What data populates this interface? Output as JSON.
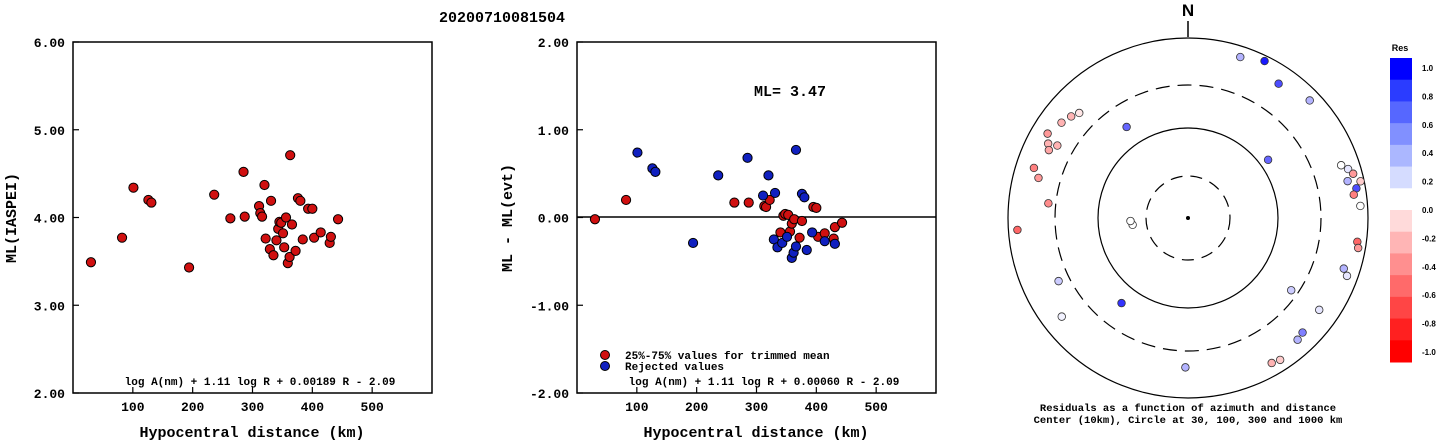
{
  "header": {
    "title": "20200710081504"
  },
  "colors": {
    "red_marker": "#d01010",
    "blue_marker": "#1020c0"
  },
  "chart_data": [
    {
      "type": "scatter",
      "id": "left",
      "xlabel": "Hypocentral distance (km)",
      "ylabel": "ML(IASPEI)",
      "xlim": [
        0,
        600
      ],
      "ylim": [
        2.0,
        6.0
      ],
      "xticks": [
        100,
        200,
        300,
        400,
        500
      ],
      "yticks": [
        2.0,
        3.0,
        4.0,
        5.0,
        6.0
      ],
      "ytick_labels": [
        "2.00",
        "3.00",
        "4.00",
        "5.00",
        "6.00"
      ],
      "formula": "log A(nm) + 1.11 log R + 0.00189 R - 2.09",
      "points": [
        [
          30,
          3.49
        ],
        [
          82,
          3.77
        ],
        [
          101,
          4.34
        ],
        [
          126,
          4.2
        ],
        [
          131,
          4.17
        ],
        [
          194,
          3.43
        ],
        [
          236,
          4.26
        ],
        [
          263,
          3.99
        ],
        [
          285,
          4.52
        ],
        [
          287,
          4.01
        ],
        [
          311,
          4.13
        ],
        [
          313,
          4.05
        ],
        [
          316,
          4.01
        ],
        [
          320,
          4.37
        ],
        [
          322,
          3.76
        ],
        [
          329,
          3.64
        ],
        [
          331,
          4.19
        ],
        [
          335,
          3.57
        ],
        [
          340,
          3.74
        ],
        [
          343,
          3.87
        ],
        [
          345,
          3.95
        ],
        [
          348,
          3.94
        ],
        [
          351,
          3.82
        ],
        [
          353,
          3.66
        ],
        [
          356,
          4.0
        ],
        [
          359,
          3.48
        ],
        [
          362,
          3.55
        ],
        [
          363,
          4.71
        ],
        [
          366,
          3.92
        ],
        [
          372,
          3.62
        ],
        [
          376,
          4.22
        ],
        [
          380,
          4.19
        ],
        [
          384,
          3.75
        ],
        [
          393,
          4.1
        ],
        [
          400,
          4.1
        ],
        [
          403,
          3.77
        ],
        [
          414,
          3.83
        ],
        [
          429,
          3.71
        ],
        [
          431,
          3.78
        ],
        [
          443,
          3.98
        ]
      ]
    },
    {
      "type": "scatter",
      "id": "mid",
      "xlabel": "Hypocentral distance (km)",
      "ylabel": "ML - ML(evt)",
      "xlim": [
        0,
        600
      ],
      "ylim": [
        -2.0,
        2.0
      ],
      "xticks": [
        100,
        200,
        300,
        400,
        500
      ],
      "yticks": [
        -2.0,
        -1.0,
        0.0,
        1.0,
        2.0
      ],
      "ytick_labels": [
        "-2.00",
        "-1.00",
        "0.00",
        "1.00",
        "2.00"
      ],
      "annotation": "ML= 3.47",
      "legend": [
        {
          "label": "25%-75% values for trimmed mean",
          "color": "#d01010"
        },
        {
          "label": "Rejected values",
          "color": "#1020c0"
        }
      ],
      "formula": "log A(nm) + 1.11 log R + 0.00060 R - 2.09",
      "trimmed_points": [
        [
          30,
          -0.02
        ],
        [
          82,
          0.2
        ],
        [
          263,
          0.17
        ],
        [
          287,
          0.17
        ],
        [
          313,
          0.13
        ],
        [
          316,
          0.12
        ],
        [
          322,
          0.2
        ],
        [
          340,
          -0.17
        ],
        [
          345,
          0.02
        ],
        [
          348,
          0.04
        ],
        [
          353,
          0.03
        ],
        [
          356,
          -0.16
        ],
        [
          359,
          -0.07
        ],
        [
          363,
          -0.02
        ],
        [
          372,
          -0.23
        ],
        [
          376,
          -0.04
        ],
        [
          395,
          0.12
        ],
        [
          400,
          0.11
        ],
        [
          403,
          -0.22
        ],
        [
          414,
          -0.18
        ],
        [
          429,
          -0.24
        ],
        [
          431,
          -0.11
        ],
        [
          443,
          -0.06
        ]
      ],
      "rejected_points": [
        [
          101,
          0.74
        ],
        [
          126,
          0.56
        ],
        [
          131,
          0.52
        ],
        [
          194,
          -0.29
        ],
        [
          236,
          0.48
        ],
        [
          285,
          0.68
        ],
        [
          311,
          0.25
        ],
        [
          320,
          0.48
        ],
        [
          329,
          -0.25
        ],
        [
          331,
          0.28
        ],
        [
          335,
          -0.34
        ],
        [
          343,
          -0.29
        ],
        [
          351,
          -0.22
        ],
        [
          359,
          -0.46
        ],
        [
          362,
          -0.4
        ],
        [
          366,
          0.77
        ],
        [
          366,
          -0.33
        ],
        [
          376,
          0.27
        ],
        [
          380,
          0.23
        ],
        [
          384,
          -0.37
        ],
        [
          393,
          -0.17
        ],
        [
          414,
          -0.27
        ],
        [
          431,
          -0.3
        ]
      ]
    },
    {
      "type": "polar",
      "id": "azimuth",
      "north_label": "N",
      "caption_line1": "Residuals as a function of azimuth and distance",
      "caption_line2": "Center (10km), Circle at 30, 100, 300 and 1000 km",
      "colorbar": {
        "title": "Res",
        "ticks": [
          "1.0",
          "0.8",
          "0.6",
          "0.4",
          "0.2",
          "0.0",
          "-0.2",
          "-0.4",
          "-0.6",
          "-0.8",
          "-1.0"
        ],
        "colors": [
          "#0000ff",
          "#2b3cff",
          "#5667ff",
          "#8190ff",
          "#abb7ff",
          "#d5dcff",
          "#ffffff",
          "#ffdada",
          "#ffb5b5",
          "#ff8f8f",
          "#ff6a6a",
          "#ff4545",
          "#ff2020",
          "#ff0000"
        ]
      },
      "points": [
        {
          "az": 307,
          "r": 0.88,
          "res": -0.3
        },
        {
          "az": 311,
          "r": 0.86,
          "res": -0.3
        },
        {
          "az": 314,
          "r": 0.84,
          "res": -0.1
        },
        {
          "az": 301,
          "r": 0.91,
          "res": -0.4
        },
        {
          "az": 298,
          "r": 0.88,
          "res": -0.3
        },
        {
          "az": 296,
          "r": 0.86,
          "res": -0.35
        },
        {
          "az": 299,
          "r": 0.83,
          "res": -0.3
        },
        {
          "az": 288,
          "r": 0.9,
          "res": -0.5
        },
        {
          "az": 285,
          "r": 0.86,
          "res": -0.4
        },
        {
          "az": 276,
          "r": 0.78,
          "res": -0.45
        },
        {
          "az": 266,
          "r": 0.95,
          "res": -0.6
        },
        {
          "az": 244,
          "r": 0.8,
          "res": 0.2
        },
        {
          "az": 232,
          "r": 0.89,
          "res": 0.05
        },
        {
          "az": 263,
          "r": 0.31,
          "res": 0.0
        },
        {
          "az": 267,
          "r": 0.32,
          "res": 0.0
        },
        {
          "az": 218,
          "r": 0.6,
          "res": 0.8
        },
        {
          "az": 18,
          "r": 0.94,
          "res": 0.3
        },
        {
          "az": 26,
          "r": 0.97,
          "res": 0.9
        },
        {
          "az": 34,
          "r": 0.9,
          "res": 0.7
        },
        {
          "az": 46,
          "r": 0.94,
          "res": 0.3
        },
        {
          "az": 54,
          "r": 0.55,
          "res": 0.6
        },
        {
          "az": 326,
          "r": 0.61,
          "res": 0.6
        },
        {
          "az": 71,
          "r": 0.9,
          "res": 0.0
        },
        {
          "az": 73,
          "r": 0.93,
          "res": 0.1
        },
        {
          "az": 75,
          "r": 0.95,
          "res": -0.4
        },
        {
          "az": 77,
          "r": 0.91,
          "res": 0.3
        },
        {
          "az": 78,
          "r": 0.98,
          "res": -0.2
        },
        {
          "az": 80,
          "r": 0.95,
          "res": 0.7
        },
        {
          "az": 82,
          "r": 0.93,
          "res": -0.5
        },
        {
          "az": 86,
          "r": 0.96,
          "res": 0.0
        },
        {
          "az": 98,
          "r": 0.95,
          "res": -0.6
        },
        {
          "az": 100,
          "r": 0.96,
          "res": -0.4
        },
        {
          "az": 108,
          "r": 0.91,
          "res": 0.3
        },
        {
          "az": 110,
          "r": 0.94,
          "res": 0.1
        },
        {
          "az": 125,
          "r": 0.89,
          "res": 0.1
        },
        {
          "az": 135,
          "r": 0.9,
          "res": 0.5
        },
        {
          "az": 138,
          "r": 0.91,
          "res": 0.3
        },
        {
          "az": 147,
          "r": 0.94,
          "res": -0.2
        },
        {
          "az": 150,
          "r": 0.93,
          "res": -0.3
        },
        {
          "az": 181,
          "r": 0.83,
          "res": 0.3
        },
        {
          "az": 125,
          "r": 0.7,
          "res": 0.2
        }
      ]
    }
  ]
}
